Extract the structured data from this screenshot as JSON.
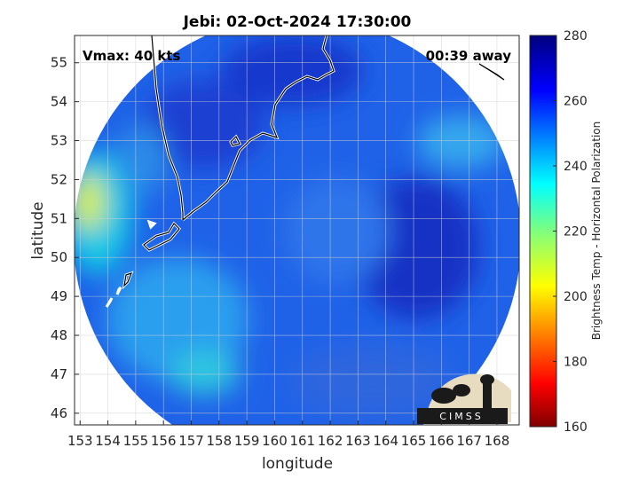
{
  "chart_data": {
    "type": "heatmap",
    "title": "Jebi: 02-Oct-2024 17:30:00",
    "xlabel": "longitude",
    "ylabel": "latitude",
    "xlim": [
      152.8,
      168.8
    ],
    "ylim": [
      45.7,
      55.7
    ],
    "xticks": [
      153,
      154,
      155,
      156,
      157,
      158,
      159,
      160,
      161,
      162,
      163,
      164,
      165,
      166,
      167,
      168
    ],
    "yticks": [
      46,
      47,
      48,
      49,
      50,
      51,
      52,
      53,
      54,
      55
    ],
    "grid": true,
    "annotations": {
      "left": "Vmax: 40 kts",
      "right": "00:39 away"
    },
    "colorbar": {
      "label": "Brightness Temp - Horizontal Polarization",
      "range": [
        160,
        280
      ],
      "ticks": [
        160,
        180,
        200,
        220,
        240,
        260,
        280
      ],
      "colormap": "jet",
      "placement": "right"
    },
    "swath_mean_value": 258,
    "features": [
      {
        "name": "warm region west edge",
        "value": 215
      },
      {
        "name": "cold region northwest land",
        "value": 265
      },
      {
        "name": "cold cluster east",
        "value": 268
      },
      {
        "name": "warm band southwest",
        "value": 240
      },
      {
        "name": "warm patch northeast",
        "value": 240
      }
    ],
    "logo": "CIMSS"
  },
  "colors": {
    "background": "#ffffff",
    "axis": "#262626",
    "coast": "#ffffff"
  }
}
